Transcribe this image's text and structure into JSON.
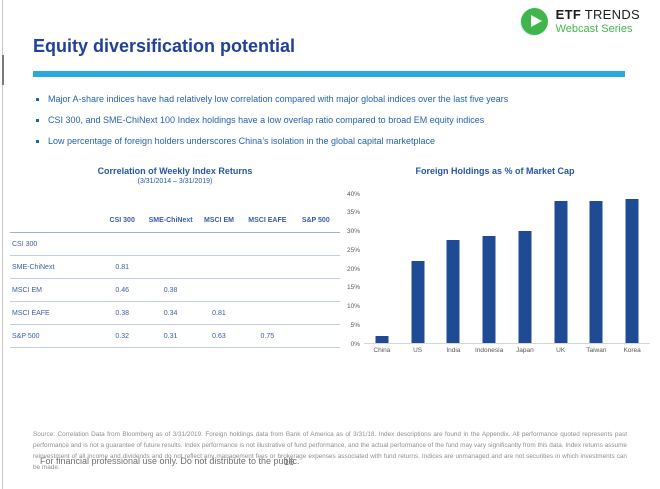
{
  "logo": {
    "etf": "ETF",
    "trends": "TRENDS",
    "subtitle": "Webcast Series",
    "green": "#3fb54b"
  },
  "title": "Equity diversification potential",
  "bullets": [
    "Major A-share indices have had relatively low correlation compared with major global indices over the last five years",
    "CSI 300, and SME-ChiNext 100 Index holdings have a low overlap ratio compared to broad EM equity indices",
    "Low percentage of foreign holders underscores China’s isolation in the global capital marketplace"
  ],
  "table": {
    "title": "Correlation of Weekly Index Returns",
    "subtitle": "(3/31/2014 – 3/31/2019)",
    "columns": [
      "CSI 300",
      "SME-ChiNext",
      "MSCI EM",
      "MSCI EAFE",
      "S&P 500"
    ],
    "rows": [
      {
        "label": "CSI 300",
        "values": [
          "",
          "",
          "",
          "",
          ""
        ]
      },
      {
        "label": "SME-ChiNext",
        "values": [
          "0.81",
          "",
          "",
          "",
          ""
        ]
      },
      {
        "label": "MSCI EM",
        "values": [
          "0.46",
          "0.38",
          "",
          "",
          ""
        ]
      },
      {
        "label": "MSCI EAFE",
        "values": [
          "0.38",
          "0.34",
          "0.81",
          "",
          ""
        ]
      },
      {
        "label": "S&P 500",
        "values": [
          "0.32",
          "0.31",
          "0.63",
          "0.75",
          ""
        ]
      }
    ]
  },
  "chart_data": {
    "type": "bar",
    "title": "Foreign Holdings as % of Market Cap",
    "categories": [
      "China",
      "US",
      "India",
      "Indonesia",
      "Japan",
      "UK",
      "Taiwan",
      "Korea"
    ],
    "values": [
      2,
      22,
      27.5,
      28.5,
      30,
      38,
      38,
      38.5
    ],
    "xlabel": "",
    "ylabel": "",
    "ylim": [
      0,
      40
    ],
    "ytick_step": 5,
    "ytick_suffix": "%",
    "grid": false,
    "legend": null,
    "bar_color": "#1f4b94"
  },
  "source": "Source: Correlation Data from Bloomberg as of 3/31/2019.  Foreign holdings data from Bank of America as of 3/31/18. Index descriptions are found in the Appendix. All performance quoted represents past performance and is not a guarantee of future results. Index performance is not illustrative of fund performance, and the actual performance of the fund may vary significantly from this data. Index returns assume reinvestment of all income and dividends and do not reflect any management fees or brokerage expenses associated with fund returns. Indices are unmanaged and are not securities in which investments can be made.",
  "footer": {
    "disclaimer": "For financial professional use only. Do not distribute to the public.",
    "page_number": "16"
  },
  "colors": {
    "title_blue": "#21409a",
    "divider_teal": "#29a9dc",
    "bullet_blue": "#2463ae",
    "table_blue": "#3a5da8",
    "bar_navy": "#1f4b94",
    "logo_green": "#3fb54b"
  }
}
